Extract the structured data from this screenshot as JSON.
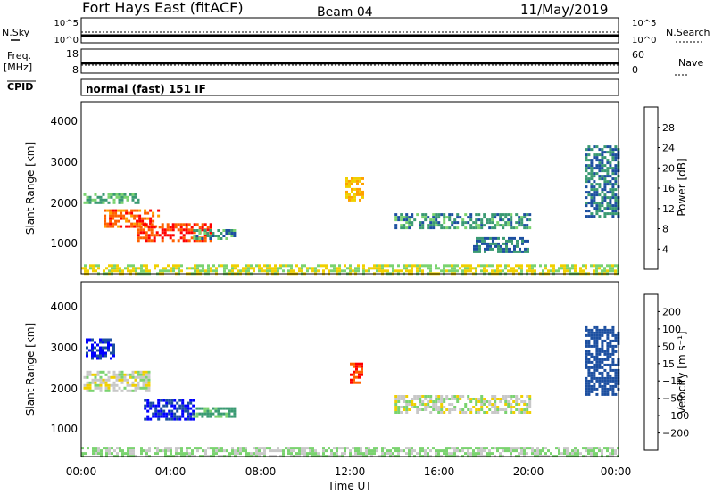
{
  "header": {
    "station": "Fort Hays East (fitACF)",
    "beam": "Beam 04",
    "date": "11/May/2019"
  },
  "strips": {
    "nsky_label": "N.Sky",
    "nsky_ticks": [
      "10^5",
      "10^0"
    ],
    "nsearch_label": "N.Search",
    "nsearch_ticks": [
      "10^5",
      "10^0"
    ],
    "freq_label": "Freq.",
    "freq_unit": "[MHz]",
    "freq_ticks": [
      "18",
      "8"
    ],
    "nave_label": "Nave",
    "nave_ticks": [
      "60",
      "0"
    ],
    "cpid_label": "CPID",
    "cpid_text": "normal (fast) 151 IF"
  },
  "axes": {
    "xlabel": "Time UT",
    "x_ticks": [
      "00:00",
      "04:00",
      "08:00",
      "12:00",
      "16:00",
      "20:00",
      "00:00"
    ],
    "ylabel": "Slant Range [km]",
    "y_ticks": [
      "4000",
      "3000",
      "2000",
      "1000"
    ]
  },
  "chart_data": [
    {
      "type": "heatmap",
      "panel": "power",
      "ylabel": "Slant Range [km]",
      "xlabel": "",
      "ylim": [
        180,
        4500
      ],
      "x_hours": [
        0,
        24
      ],
      "colorbar": {
        "label": "Power [dB]",
        "ticks": [
          "28",
          "24",
          "20",
          "16",
          "12",
          "8",
          "4"
        ],
        "colors": [
          "#ff0000",
          "#ff6000",
          "#ffa000",
          "#f0d000",
          "#7ad36f",
          "#3a9a72",
          "#1c4fa0",
          "#0000ff"
        ]
      },
      "regions": [
        {
          "from_h": 0.1,
          "to_h": 2.5,
          "r_from": 1950,
          "r_to": 2200,
          "level": 12
        },
        {
          "from_h": 1.0,
          "to_h": 3.5,
          "r_from": 1350,
          "r_to": 1800,
          "level": 26
        },
        {
          "from_h": 2.5,
          "to_h": 5.8,
          "r_from": 1000,
          "r_to": 1450,
          "level": 28
        },
        {
          "from_h": 5.0,
          "to_h": 6.8,
          "r_from": 1050,
          "r_to": 1300,
          "level": 10
        },
        {
          "from_h": 11.8,
          "to_h": 12.6,
          "r_from": 2000,
          "r_to": 2600,
          "level": 20
        },
        {
          "from_h": 14.0,
          "to_h": 20.0,
          "r_from": 1300,
          "r_to": 1700,
          "level": 10
        },
        {
          "from_h": 17.5,
          "to_h": 20.0,
          "r_from": 700,
          "r_to": 1100,
          "level": 8
        },
        {
          "from_h": 22.5,
          "to_h": 24.0,
          "r_from": 1600,
          "r_to": 3400,
          "level": 8
        },
        {
          "from_h": 0.0,
          "to_h": 24.0,
          "r_from": 200,
          "r_to": 420,
          "level": 16
        }
      ]
    },
    {
      "type": "heatmap",
      "panel": "velocity",
      "ylabel": "Slant Range [km]",
      "xlabel": "Time UT",
      "ylim": [
        180,
        4500
      ],
      "x_hours": [
        0,
        24
      ],
      "colorbar": {
        "label": "Velocity [m s⁻¹]",
        "ticks": [
          "200",
          "100",
          "50",
          "15",
          "−15",
          "−50",
          "−100",
          "−200"
        ],
        "colors": [
          "#0000ff",
          "#1c4fa0",
          "#3a9a72",
          "#7ad36f",
          "#c8c8c8",
          "#f0d000",
          "#ffa000",
          "#ff6000",
          "#ff0000"
        ]
      },
      "regions": [
        {
          "from_h": 0.2,
          "to_h": 1.5,
          "r_from": 2600,
          "r_to": 3100,
          "level": 200
        },
        {
          "from_h": 0.1,
          "to_h": 3.0,
          "r_from": 1800,
          "r_to": 2300,
          "level": 0
        },
        {
          "from_h": 2.8,
          "to_h": 5.0,
          "r_from": 1100,
          "r_to": 1600,
          "level": 200
        },
        {
          "from_h": 5.0,
          "to_h": 6.8,
          "r_from": 1150,
          "r_to": 1400,
          "level": 60
        },
        {
          "from_h": 12.0,
          "to_h": 12.5,
          "r_from": 2000,
          "r_to": 2500,
          "level": -200
        },
        {
          "from_h": 14.0,
          "to_h": 20.0,
          "r_from": 1300,
          "r_to": 1700,
          "level": 0
        },
        {
          "from_h": 22.5,
          "to_h": 24.0,
          "r_from": 1700,
          "r_to": 3400,
          "level": 150
        },
        {
          "from_h": 0.0,
          "to_h": 24.0,
          "r_from": 200,
          "r_to": 420,
          "level": 20
        }
      ]
    }
  ]
}
